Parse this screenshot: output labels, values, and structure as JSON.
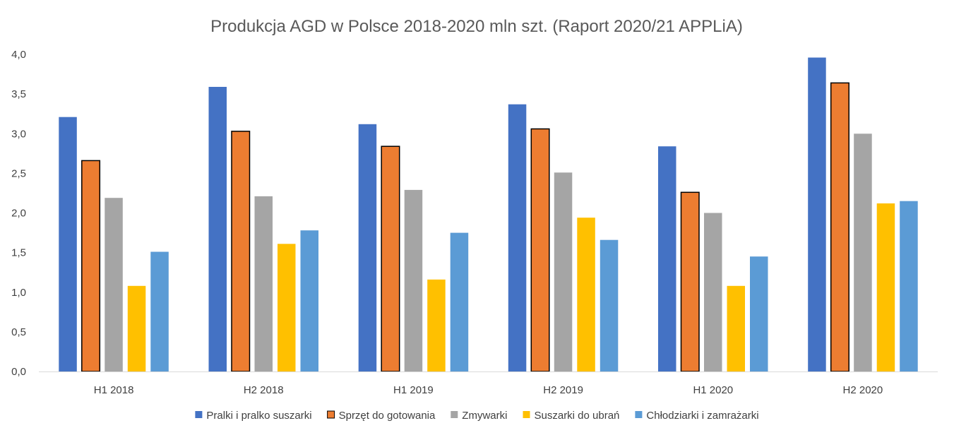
{
  "chart_data": {
    "type": "bar",
    "title": "Produkcja AGD w Polsce 2018-2020 mln szt. (Raport 2020/21 APPLiA)",
    "xlabel": "",
    "ylabel": "",
    "ylim": [
      0,
      4
    ],
    "yticks": [
      "0,0",
      "0,5",
      "1,0",
      "1,5",
      "2,0",
      "2,5",
      "3,0",
      "3,5",
      "4,0"
    ],
    "grid": false,
    "legend_position": "bottom",
    "categories": [
      "H1 2018",
      "H2 2018",
      "H1 2019",
      "H2 2019",
      "H1 2020",
      "H2 2020"
    ],
    "series": [
      {
        "name": "Pralki i pralko suszarki",
        "color": "#4472C4",
        "outlined": false,
        "values": [
          3.21,
          3.59,
          3.12,
          3.37,
          2.84,
          3.96
        ]
      },
      {
        "name": "Sprzęt do gotowania",
        "color": "#ED7D31",
        "outlined": true,
        "values": [
          2.66,
          3.03,
          2.84,
          3.06,
          2.26,
          3.64
        ]
      },
      {
        "name": "Zmywarki",
        "color": "#A5A5A5",
        "outlined": false,
        "values": [
          2.19,
          2.21,
          2.29,
          2.51,
          2.0,
          3.0
        ]
      },
      {
        "name": "Suszarki do ubrań",
        "color": "#FFC000",
        "outlined": false,
        "values": [
          1.08,
          1.61,
          1.16,
          1.94,
          1.08,
          2.12
        ]
      },
      {
        "name": "Chłodziarki i zamrażarki",
        "color": "#5B9BD5",
        "outlined": false,
        "values": [
          1.51,
          1.78,
          1.75,
          1.66,
          1.45,
          2.15
        ]
      }
    ]
  }
}
